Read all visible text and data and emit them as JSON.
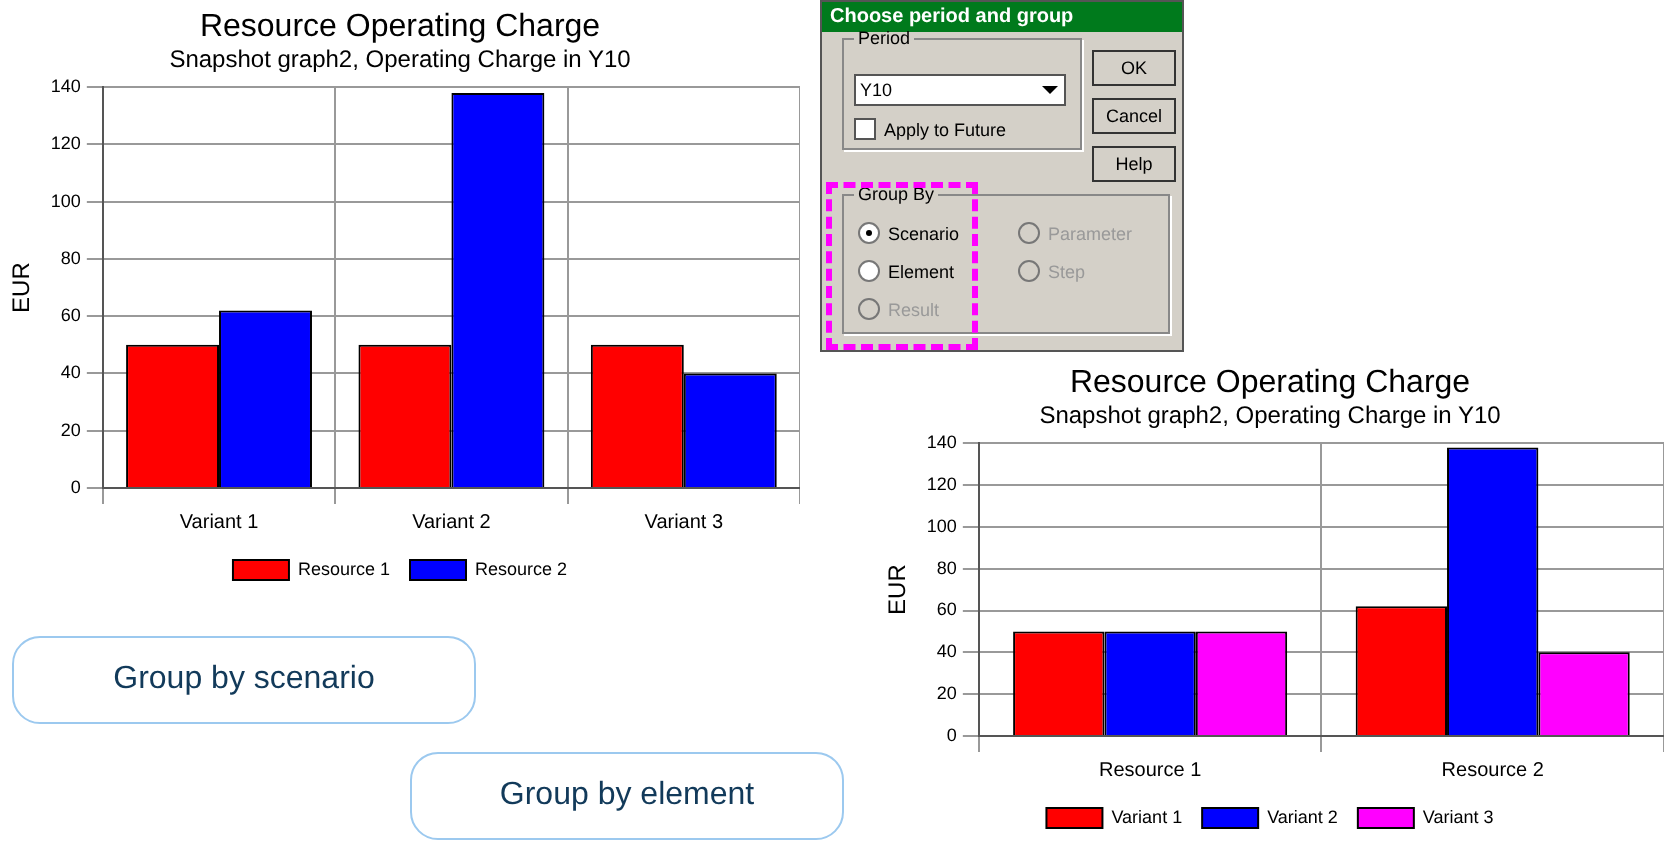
{
  "chart_data": [
    {
      "type": "bar",
      "title": "Resource Operating Charge",
      "subtitle": "Snapshot graph2, Operating Charge in Y10",
      "ylabel": "EUR",
      "categories": [
        "Variant 1",
        "Variant 2",
        "Variant 3"
      ],
      "series": [
        {
          "name": "Resource 1",
          "color": "#ff0000",
          "values": [
            50,
            50,
            50
          ]
        },
        {
          "name": "Resource 2",
          "color": "#0000ff",
          "values": [
            62,
            138,
            40
          ]
        }
      ],
      "ylim": [
        0,
        140
      ],
      "yticks": [
        0,
        20,
        40,
        60,
        80,
        100,
        120,
        140
      ],
      "grid": true,
      "legend": "bottom",
      "annotations": [
        "Group by scenario"
      ]
    },
    {
      "type": "bar",
      "title": "Resource Operating Charge",
      "subtitle": "Snapshot graph2, Operating Charge in Y10",
      "ylabel": "EUR",
      "categories": [
        "Resource 1",
        "Resource 2"
      ],
      "series": [
        {
          "name": "Variant 1",
          "color": "#ff0000",
          "values": [
            50,
            62
          ]
        },
        {
          "name": "Variant 2",
          "color": "#0000ff",
          "values": [
            50,
            138
          ]
        },
        {
          "name": "Variant 3",
          "color": "#ff00ff",
          "values": [
            50,
            40
          ]
        }
      ],
      "ylim": [
        0,
        140
      ],
      "yticks": [
        0,
        20,
        40,
        60,
        80,
        100,
        120,
        140
      ],
      "grid": true,
      "legend": "bottom",
      "annotations": [
        "Group by element"
      ]
    },
    {
      "type": "other",
      "title": "Choose period and group",
      "annotations": [
        "Period",
        "Y10",
        "Apply to Future",
        "OK",
        "Cancel",
        "Help",
        "Group By",
        "Scenario",
        "Element",
        "Result",
        "Parameter",
        "Step"
      ]
    }
  ]
}
